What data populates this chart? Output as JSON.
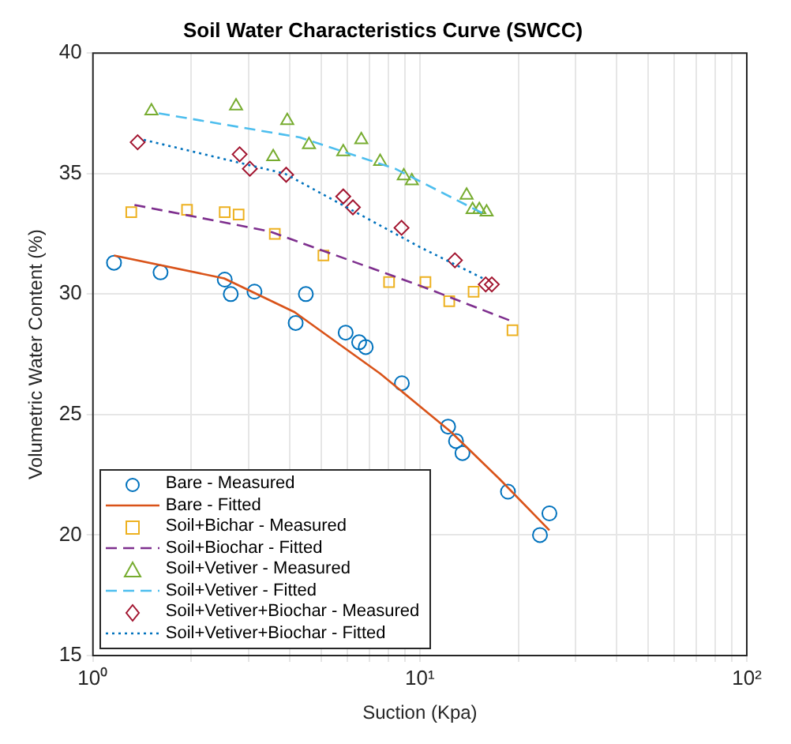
{
  "chart_data": {
    "type": "scatter",
    "title": "Soil Water Characteristics Curve (SWCC)",
    "xlabel": "Suction (Kpa)",
    "ylabel": "Volumetric Water Content (%)",
    "log": "x",
    "xlim": [
      1,
      100
    ],
    "ylim": [
      15,
      40
    ],
    "xticks": [
      {
        "value": 1,
        "label": "10⁰"
      },
      {
        "value": 2,
        "label": null
      },
      {
        "value": 3,
        "label": null
      },
      {
        "value": 4,
        "label": null
      },
      {
        "value": 5,
        "label": null
      },
      {
        "value": 6,
        "label": null
      },
      {
        "value": 7,
        "label": null
      },
      {
        "value": 8,
        "label": null
      },
      {
        "value": 9,
        "label": null
      },
      {
        "value": 10,
        "label": "10¹"
      },
      {
        "value": 20,
        "label": null
      },
      {
        "value": 30,
        "label": null
      },
      {
        "value": 40,
        "label": null
      },
      {
        "value": 50,
        "label": null
      },
      {
        "value": 60,
        "label": null
      },
      {
        "value": 70,
        "label": null
      },
      {
        "value": 80,
        "label": null
      },
      {
        "value": 90,
        "label": null
      },
      {
        "value": 100,
        "label": "10²"
      }
    ],
    "yticks": [
      15,
      20,
      25,
      30,
      35,
      40
    ],
    "grid": true,
    "legend": "bottom left",
    "series": [
      {
        "name": "Bare - Measured",
        "type": "scatter",
        "marker": "circle",
        "color": "#0072bd",
        "x": [
          1.16,
          1.61,
          2.53,
          2.64,
          3.12,
          4.17,
          4.48,
          5.93,
          6.52,
          6.83,
          8.81,
          12.2,
          12.9,
          13.5,
          18.6,
          23.3,
          24.9
        ],
        "values": [
          31.3,
          30.9,
          30.6,
          30.0,
          30.1,
          28.8,
          30.0,
          28.4,
          28.0,
          27.8,
          26.3,
          24.5,
          23.9,
          23.4,
          21.8,
          20.0,
          20.9
        ]
      },
      {
        "name": "Bare - Fitted",
        "type": "line",
        "marker": "none",
        "line_style": "solid",
        "color": "#d95319",
        "x": [
          1.16,
          2.52,
          4.14,
          7.56,
          12.4,
          17.6,
          24.9
        ],
        "values": [
          31.6,
          30.65,
          29.25,
          26.7,
          24.3,
          22.3,
          20.2
        ]
      },
      {
        "name": "Soil+Bichar - Measured",
        "type": "scatter",
        "marker": "square",
        "color": "#edb120",
        "x": [
          1.31,
          1.94,
          2.53,
          2.79,
          3.6,
          5.07,
          8.05,
          10.4,
          12.3,
          14.6,
          19.2
        ],
        "values": [
          33.4,
          33.5,
          33.4,
          33.3,
          32.5,
          31.6,
          30.5,
          30.5,
          29.7,
          30.1,
          28.5
        ]
      },
      {
        "name": "Soil+Biochar - Fitted",
        "type": "line",
        "marker": "none",
        "line_style": "dashed",
        "color": "#7e2f8e",
        "x": [
          1.34,
          3.47,
          10.0,
          19.3
        ],
        "values": [
          33.7,
          32.6,
          30.35,
          28.85
        ]
      },
      {
        "name": "Soil+Vetiver - Measured",
        "type": "scatter",
        "marker": "triangle",
        "color": "#77ac30",
        "x": [
          1.51,
          2.74,
          3.93,
          3.56,
          4.58,
          5.83,
          6.62,
          7.56,
          8.93,
          9.45,
          13.9,
          14.5,
          15.2,
          16.0
        ],
        "values": [
          37.6,
          37.8,
          37.2,
          35.7,
          36.2,
          35.9,
          36.4,
          35.5,
          34.9,
          34.7,
          34.1,
          33.5,
          33.5,
          33.4
        ]
      },
      {
        "name": "Soil+Vetiver - Fitted",
        "type": "line",
        "marker": "none",
        "line_style": "dashed",
        "color": "#4dbeee",
        "x": [
          1.59,
          4.3,
          8.41,
          16.1
        ],
        "values": [
          37.5,
          36.5,
          35.2,
          33.25
        ]
      },
      {
        "name": "Soil+Vetiver+Biochar - Measured",
        "type": "scatter",
        "marker": "diamond",
        "color": "#a2142f",
        "x": [
          1.37,
          2.81,
          3.02,
          3.9,
          5.83,
          6.24,
          8.79,
          12.8,
          15.9,
          16.6
        ],
        "values": [
          36.3,
          35.8,
          35.2,
          34.95,
          34.05,
          33.6,
          32.75,
          31.4,
          30.4,
          30.4
        ]
      },
      {
        "name": "Soil+Vetiver+Biochar - Fitted",
        "type": "line",
        "marker": "none",
        "line_style": "dotted",
        "color": "#0072bd",
        "x": [
          1.43,
          3.86,
          10.0,
          15.6
        ],
        "values": [
          36.4,
          35.0,
          31.95,
          30.65
        ]
      }
    ]
  }
}
